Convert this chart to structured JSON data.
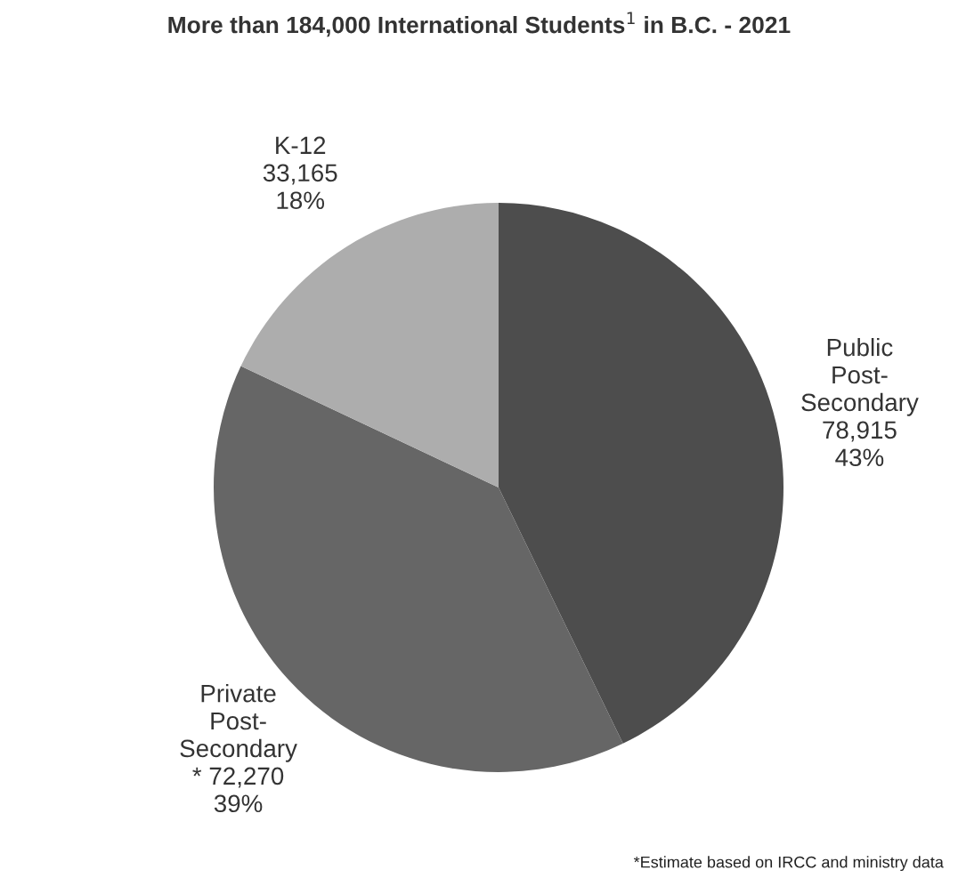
{
  "chart_data": {
    "type": "pie",
    "title": "More than 184,000 International Students$^{1}$ in B.C. - 2021",
    "categories": [
      "Public\nPost-\nSecondary",
      "Private\nPost-\nSecondary",
      "K-12"
    ],
    "values": [
      78915,
      72270,
      33165
    ],
    "value_labels": [
      "78,915\n43%",
      "* 72,270\n39%",
      "33,165\n18%"
    ],
    "colors": [
      "#4d4d4d",
      "#666666",
      "#adadad"
    ],
    "annotations": [
      "*Estimate based on IRCC and ministry data"
    ],
    "legend": false
  }
}
